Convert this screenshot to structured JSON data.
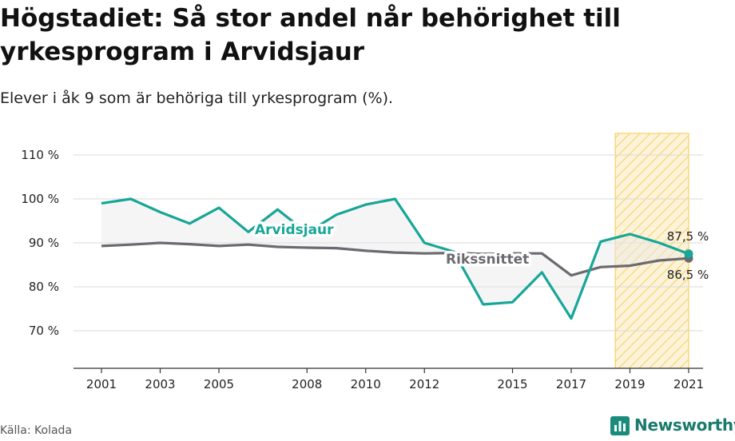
{
  "title": "Högstadiet: Så stor andel når behörighet till yrkesprogram i Arvidsjaur",
  "subtitle": "Elever i åk 9 som är behöriga till yrkesprogram (%).",
  "source": "Källa: Kolada",
  "logo": {
    "name": "Newsworthy",
    "icon": "bar-chart-icon"
  },
  "colors": {
    "arvidsjaur": "#17a697",
    "riksnittet": "#6b6a70",
    "highlight": "#f5c84c"
  },
  "chart_data": {
    "type": "line",
    "y_ticks": [
      "110 %",
      "100 %",
      "90 %",
      "80 %",
      "70 %"
    ],
    "x_ticks": [
      "2001",
      "2003",
      "2005",
      "2008",
      "2010",
      "2012",
      "2015",
      "2017",
      "2019",
      "2021"
    ],
    "ylim": [
      62,
      115
    ],
    "xlim": [
      2000,
      2022.5
    ],
    "highlight_range": [
      2018.5,
      2021
    ],
    "series": [
      {
        "name": "Arvidsjaur",
        "x": [
          2001,
          2002,
          2003,
          2004,
          2005,
          2006,
          2007,
          2008,
          2009,
          2010,
          2011,
          2012,
          2013,
          2014,
          2015,
          2016,
          2017,
          2018,
          2019,
          2020,
          2021
        ],
        "values": [
          99,
          100,
          97,
          94.4,
          98,
          92.5,
          97.6,
          92.3,
          96.4,
          98.7,
          100,
          90,
          88,
          76,
          76.5,
          83.3,
          72.8,
          90.3,
          92,
          90,
          87.5
        ]
      },
      {
        "name": "Rikssnittet",
        "x": [
          2001,
          2002,
          2003,
          2004,
          2005,
          2006,
          2007,
          2008,
          2009,
          2010,
          2011,
          2012,
          2013,
          2014,
          2015,
          2016,
          2017,
          2018,
          2019,
          2020,
          2021
        ],
        "values": [
          89.3,
          89.6,
          90,
          89.7,
          89.3,
          89.6,
          89.1,
          88.9,
          88.8,
          88.2,
          87.8,
          87.6,
          87.7,
          87.5,
          87.6,
          87.6,
          82.6,
          84.5,
          84.8,
          86,
          86.5
        ]
      }
    ],
    "end_labels": {
      "arvidsjaur": "87,5 %",
      "riksnittet": "86,5 %"
    }
  }
}
